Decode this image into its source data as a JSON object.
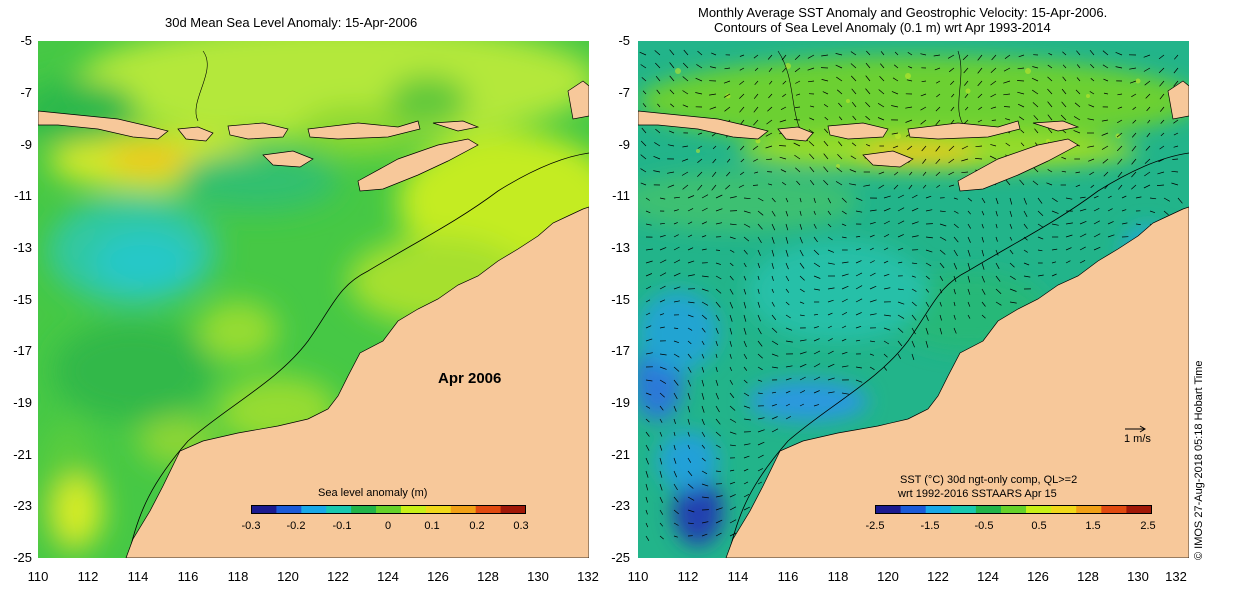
{
  "left_map": {
    "title": "30d Mean Sea Level Anomaly: 15-Apr-2006",
    "annotation": "Apr 2006",
    "colorbar": {
      "title": "Sea level anomaly (m)",
      "ticks": [
        "-0.3",
        "-0.2",
        "-0.1",
        "0",
        "0.1",
        "0.2",
        "0.3"
      ],
      "colors": [
        "#1a1a90",
        "#1a5ad8",
        "#18a8e8",
        "#18c8b0",
        "#22b44a",
        "#66d22a",
        "#c8f018",
        "#f0d81a",
        "#f0a016",
        "#e04a10",
        "#a01808"
      ]
    }
  },
  "right_map": {
    "title_line1": "Monthly Average SST Anomaly  and Geostrophic Velocity: 15-Apr-2006.",
    "title_line2": "Contours of Sea Level Anomaly (0.1 m) wrt Apr 1993-2014",
    "velocity_reference": "1 m/s",
    "colorbar": {
      "title_line1": "SST (°C) 30d ngt-only comp, QL>=2",
      "title_line2": "wrt 1992-2016 SSTAARS Apr 15",
      "ticks": [
        "-2.5",
        "-1.5",
        "-0.5",
        "0.5",
        "1.5",
        "2.5"
      ],
      "colors": [
        "#1a1a90",
        "#1a5ad8",
        "#18a8e8",
        "#18c8b0",
        "#22b44a",
        "#66d22a",
        "#c8f018",
        "#f0d81a",
        "#f0a016",
        "#e04a10",
        "#a01808"
      ]
    }
  },
  "axes": {
    "lat_ticks": [
      "-5",
      "-7",
      "-9",
      "-11",
      "-13",
      "-15",
      "-17",
      "-19",
      "-21",
      "-23",
      "-25"
    ],
    "lon_ticks": [
      "110",
      "112",
      "114",
      "116",
      "118",
      "120",
      "122",
      "124",
      "126",
      "128",
      "130",
      "132"
    ]
  },
  "credit": "© IMOS 27-Aug-2018 05:18 Hobart Time",
  "colors": {
    "land": "#f7c89a",
    "ocean_left": "#3ec84a",
    "ocean_right": "#22b48a"
  }
}
